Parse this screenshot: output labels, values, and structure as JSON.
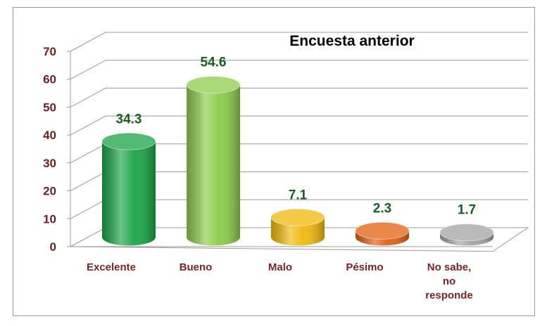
{
  "chart_data": {
    "type": "bar3d",
    "title": "Encuesta anterior",
    "categories": [
      "Excelente",
      "Bueno",
      "Malo",
      "Pésimo",
      "No sabe,\nno\nresponde"
    ],
    "values": [
      34.3,
      54.6,
      7.1,
      2.3,
      1.7
    ],
    "colors": [
      "#1aa345",
      "#8ccc4a",
      "#f0b90c",
      "#e0600f",
      "#a3a3a3"
    ],
    "ylim": [
      0,
      70
    ],
    "yticks": [
      0,
      10,
      20,
      30,
      40,
      50,
      60,
      70
    ],
    "grid": true
  }
}
